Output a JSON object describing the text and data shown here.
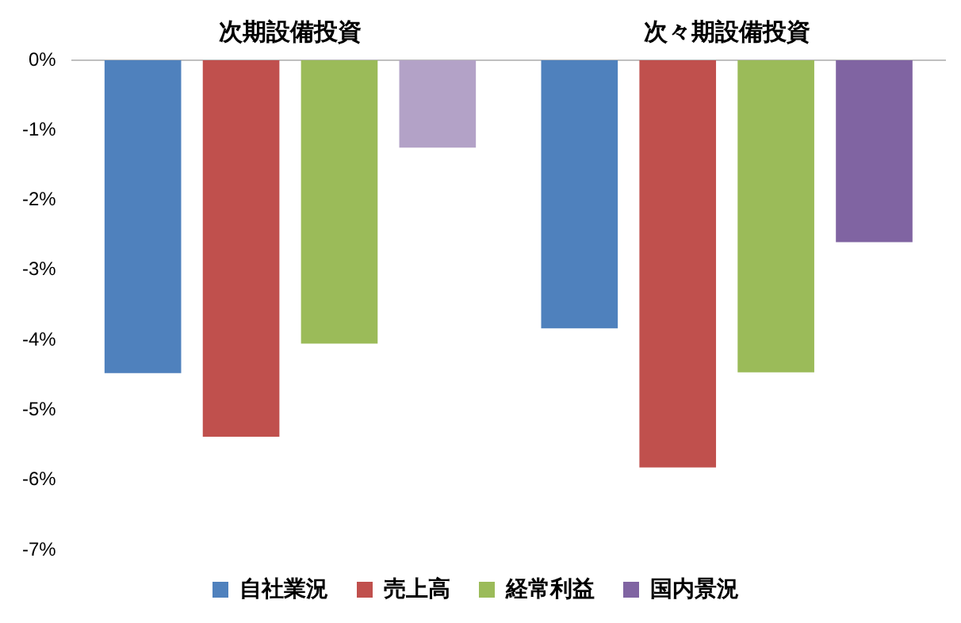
{
  "chart_data": {
    "type": "bar",
    "categories": [
      "次期設備投資",
      "次々期設備投資"
    ],
    "series": [
      {
        "name": "自社業況",
        "color": "#4f81bd",
        "values": [
          -4.47,
          -3.83
        ]
      },
      {
        "name": "売上高",
        "color": "#c0504d",
        "values": [
          -5.38,
          -5.82
        ]
      },
      {
        "name": "経常利益",
        "color": "#9bbb59",
        "values": [
          -4.05,
          -4.46
        ]
      },
      {
        "name": "国内景況",
        "color": "#8064a2",
        "colors": [
          "#b3a2c7",
          "#8064a2"
        ],
        "values": [
          -1.25,
          -2.6
        ]
      }
    ],
    "ylim": [
      -7,
      0
    ],
    "yticks": [
      {
        "value": 0,
        "label": "0%"
      },
      {
        "value": -1,
        "label": "-1%"
      },
      {
        "value": -2,
        "label": "-2%"
      },
      {
        "value": -3,
        "label": "-3%"
      },
      {
        "value": -4,
        "label": "-4%"
      },
      {
        "value": -5,
        "label": "-5%"
      },
      {
        "value": -6,
        "label": "-6%"
      },
      {
        "value": -7,
        "label": "-7%"
      }
    ],
    "grid": false,
    "legend": "bottom"
  }
}
